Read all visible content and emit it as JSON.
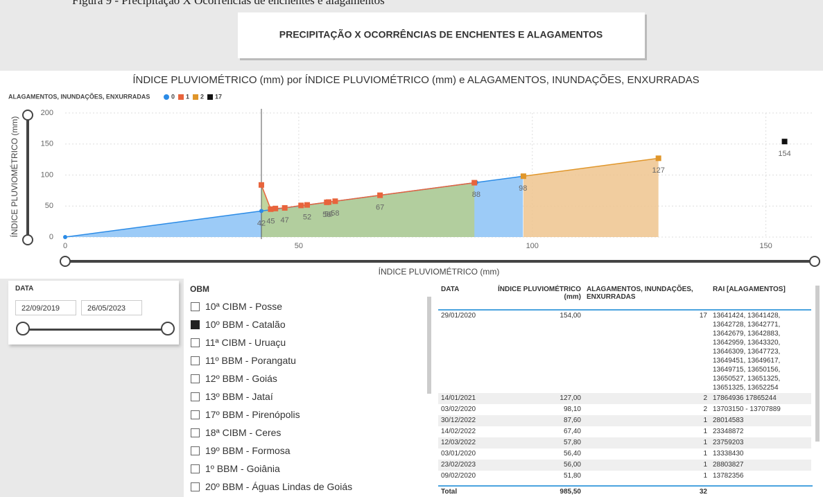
{
  "caption": "Figura 9 - Precipitação X Ocorrências de enchentes e alagamentos",
  "banner": "PRECIPITAÇÃO X OCORRÊNCIAS DE ENCHENTES E ALAGAMENTOS",
  "chart_data": {
    "type": "area",
    "title": "ÍNDICE PLUVIOMÉTRICO (mm) por ÍNDICE PLUVIOMÉTRICO (mm) e ALAGAMENTOS, INUNDAÇÕES, ENXURRADAS",
    "legend_title": "ALAGAMENTOS, INUNDAÇÕES, ENXURRADAS",
    "x_label": "ÍNDICE PLUVIOMÉTRICO (mm)",
    "y_label": "ÍNDICE PLUVIOMÉTRICO (mm)",
    "xlim": [
      0,
      160
    ],
    "ylim": [
      0,
      200
    ],
    "xticks": [
      0,
      50,
      100,
      150
    ],
    "yticks": [
      0,
      50,
      100,
      150,
      200
    ],
    "grid": true,
    "series": [
      {
        "name": "0",
        "color": "#2b8be6",
        "area_color": "#9ccbf7",
        "marker": "circle",
        "x": [
          0,
          42,
          88,
          98
        ],
        "values": [
          0,
          42,
          88,
          98
        ],
        "value_labels": [
          null,
          "42",
          "88",
          "98"
        ]
      },
      {
        "name": "1",
        "color": "#e8643c",
        "area_color": "#b6cf8e",
        "marker": "square",
        "x": [
          42,
          44,
          45,
          47,
          50.5,
          51.8,
          56,
          56.4,
          57.8,
          67.4,
          87.6
        ],
        "values": [
          84,
          45,
          46,
          47,
          51,
          51.8,
          56,
          56.4,
          57.8,
          67.4,
          87.6
        ],
        "value_labels": [
          null,
          "45",
          null,
          "47",
          null,
          "52",
          "56",
          "56",
          "58",
          "67",
          null
        ]
      },
      {
        "name": "2",
        "color": "#e0962a",
        "area_color": "#eec48e",
        "marker": "square",
        "x": [
          98.1,
          127
        ],
        "values": [
          98.1,
          127
        ],
        "value_labels": [
          null,
          "127"
        ]
      },
      {
        "name": "17",
        "color": "#111111",
        "area_color": "#111111",
        "marker": "square",
        "x": [
          154
        ],
        "values": [
          154
        ],
        "value_labels": [
          "154"
        ]
      }
    ]
  },
  "date_slicer": {
    "label": "DATA",
    "start": "22/09/2019",
    "end": "26/05/2023"
  },
  "obm": {
    "title": "OBM",
    "selected": 1,
    "items": [
      "10ª CIBM - Posse",
      "10º BBM - Catalão",
      "11ª CIBM - Uruaçu",
      "11º BBM - Porangatu",
      "12º BBM - Goiás",
      "13º BBM - Jataí",
      "17º BBM - Pirenópolis",
      "18ª CIBM - Ceres",
      "19º BBM - Formosa",
      "1º BBM - Goiânia",
      "20º BBM - Águas Lindas de Goiás"
    ]
  },
  "table": {
    "headers": [
      "DATA",
      "ÍNDICE PLUVIOMÉTRICO (mm)",
      "ALAGAMENTOS, INUNDAÇÕES, ENXURRADAS",
      "RAI [ALAGAMENTOS]"
    ],
    "rows": [
      [
        "29/01/2020",
        "154,00",
        "17",
        "13641424, 13641428, 13642728, 13642771, 13642679, 13642883, 13642959, 13643320, 13646309, 13647723, 13649451, 13649617, 13649715, 13650156, 13650527, 13651325, 13651325, 13652254"
      ],
      [
        "14/01/2021",
        "127,00",
        "2",
        "17864936 17865244"
      ],
      [
        "03/02/2020",
        "98,10",
        "2",
        "13703150 - 13707889"
      ],
      [
        "30/12/2022",
        "87,60",
        "1",
        "28014583"
      ],
      [
        "14/02/2022",
        "67,40",
        "1",
        "23348872"
      ],
      [
        "12/03/2022",
        "57,80",
        "1",
        "23759203"
      ],
      [
        "03/01/2020",
        "56,40",
        "1",
        "13338430"
      ],
      [
        "23/02/2023",
        "56,00",
        "1",
        "28803827"
      ],
      [
        "09/02/2020",
        "51,80",
        "1",
        "13782356"
      ]
    ],
    "total": {
      "label": "Total",
      "indice": "985,50",
      "count": "32"
    }
  }
}
